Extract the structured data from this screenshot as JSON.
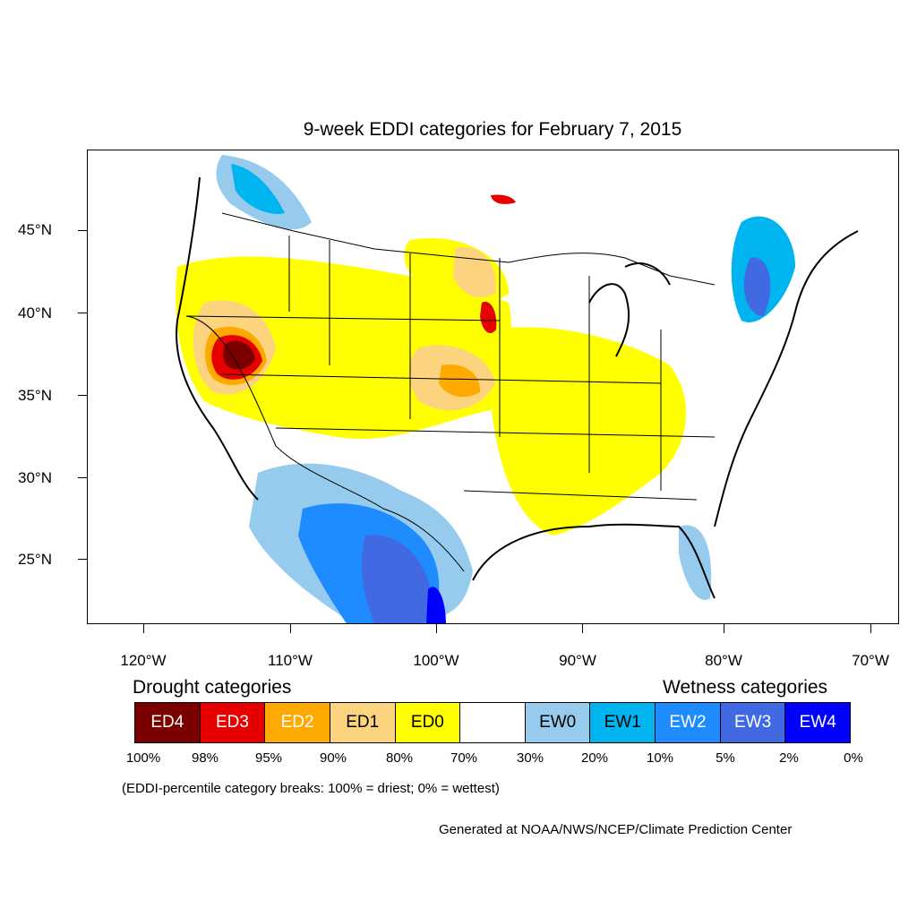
{
  "title": "9-week EDDI categories for February 7, 2015",
  "lat_labels": [
    "45°N",
    "40°N",
    "35°N",
    "30°N",
    "25°N"
  ],
  "lon_labels": [
    "120°W",
    "110°W",
    "100°W",
    "90°W",
    "80°W",
    "70°W"
  ],
  "legend": {
    "drought_heading": "Drought categories",
    "wetness_heading": "Wetness categories",
    "categories": [
      {
        "label": "ED4",
        "color": "#7a0000",
        "text_color": "#ffffff"
      },
      {
        "label": "ED3",
        "color": "#e60000",
        "text_color": "#ffffff"
      },
      {
        "label": "ED2",
        "color": "#ffaa00",
        "text_color": "#ffffff"
      },
      {
        "label": "ED1",
        "color": "#fcd37f",
        "text_color": "#000000"
      },
      {
        "label": "ED0",
        "color": "#ffff00",
        "text_color": "#000000"
      },
      {
        "label": "",
        "color": "#ffffff",
        "text_color": "#000000"
      },
      {
        "label": "EW0",
        "color": "#96cbee",
        "text_color": "#000000"
      },
      {
        "label": "EW1",
        "color": "#00b4f0",
        "text_color": "#000000"
      },
      {
        "label": "EW2",
        "color": "#1e8cff",
        "text_color": "#ffffff"
      },
      {
        "label": "EW3",
        "color": "#4169e1",
        "text_color": "#ffffff"
      },
      {
        "label": "EW4",
        "color": "#0000ff",
        "text_color": "#ffffff"
      }
    ],
    "percent_breaks": [
      "100%",
      "98%",
      "95%",
      "90%",
      "80%",
      "70%",
      "30%",
      "20%",
      "10%",
      "5%",
      "2%",
      "0%"
    ]
  },
  "breaks_note": "(EDDI-percentile category breaks: 100% = driest; 0% = wettest)",
  "credit": "Generated at NOAA/NWS/NCEP/Climate Prediction Center"
}
